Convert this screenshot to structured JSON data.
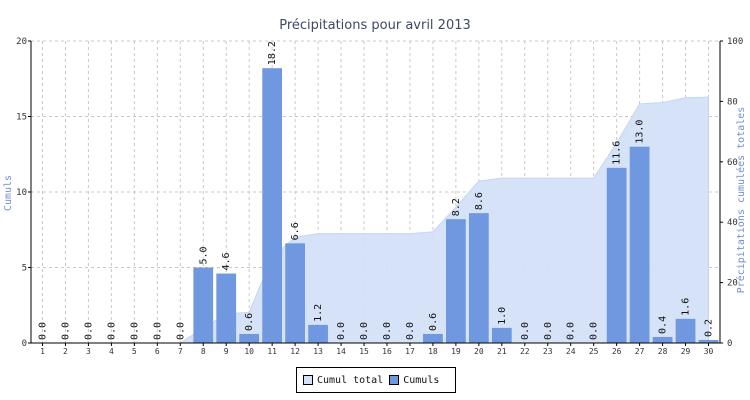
{
  "chart_data": {
    "type": "bar",
    "title": "Précipitations pour avril 2013",
    "ylabel": "Cumuls",
    "y2label": "Précipitations cumulées totales",
    "ylim": [
      0,
      20
    ],
    "y2lim": [
      0,
      100
    ],
    "yticks": [
      "0",
      "5",
      "10",
      "15",
      "20"
    ],
    "y2ticks": [
      "0",
      "20",
      "40",
      "60",
      "80",
      "100"
    ],
    "categories": [
      "1",
      "2",
      "3",
      "4",
      "5",
      "6",
      "7",
      "8",
      "9",
      "10",
      "11",
      "12",
      "13",
      "14",
      "15",
      "16",
      "17",
      "18",
      "19",
      "20",
      "21",
      "22",
      "23",
      "24",
      "25",
      "26",
      "27",
      "28",
      "29",
      "30"
    ],
    "series": [
      {
        "name": "Cumuls",
        "type": "bar",
        "color": "#6f98e0",
        "axis": "left",
        "values": [
          0.0,
          0.0,
          0.0,
          0.0,
          0.0,
          0.0,
          0.0,
          5.0,
          4.6,
          0.6,
          18.2,
          6.6,
          1.2,
          0.0,
          0.0,
          0.0,
          0.0,
          0.6,
          8.2,
          8.6,
          1.0,
          0.0,
          0.0,
          0.0,
          0.0,
          11.6,
          13.0,
          0.4,
          1.6,
          0.2
        ],
        "labels": [
          "0.0",
          "0.0",
          "0.0",
          "0.0",
          "0.0",
          "0.0",
          "0.0",
          "5.0",
          "4.6",
          "0.6",
          "18.2",
          "6.6",
          "1.2",
          "0.0",
          "0.0",
          "0.0",
          "0.0",
          "0.6",
          "8.2",
          "8.6",
          "1.0",
          "0.0",
          "0.0",
          "0.0",
          "0.0",
          "11.6",
          "13.0",
          "0.4",
          "1.6",
          "0.2"
        ]
      },
      {
        "name": "Cumul total",
        "type": "area",
        "color": "#d4e1f8",
        "axis": "right",
        "values": [
          0.0,
          0.0,
          0.0,
          0.0,
          0.0,
          0.0,
          0.0,
          5.0,
          9.6,
          10.2,
          28.4,
          35.0,
          36.2,
          36.2,
          36.2,
          36.2,
          36.2,
          36.8,
          45.0,
          53.6,
          54.6,
          54.6,
          54.6,
          54.6,
          54.6,
          66.2,
          79.2,
          79.6,
          81.2,
          81.4
        ]
      }
    ],
    "legend": {
      "position": "bottom",
      "items": [
        {
          "label": "Cumul total",
          "color": "#d4e1f8"
        },
        {
          "label": "Cumuls",
          "color": "#6f98e0"
        }
      ]
    },
    "grid": true
  }
}
